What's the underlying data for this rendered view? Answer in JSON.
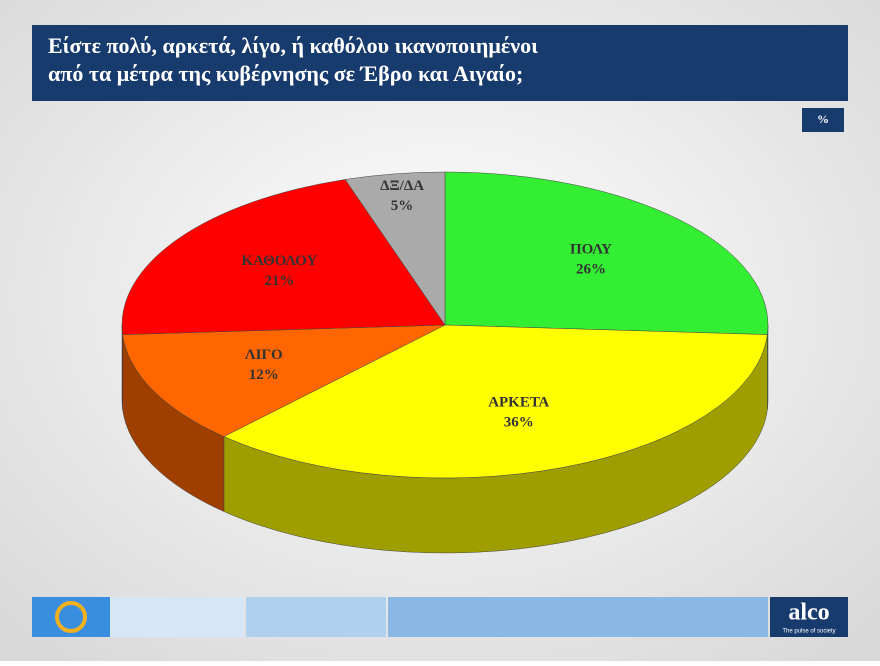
{
  "chart_data": {
    "type": "pie3d",
    "title_lines": [
      "Είστε πολύ, αρκετά, λίγο, ή καθόλου ικανοποιημένοι",
      "από τα μέτρα της κυβέρνησης σε Έβρο και Αιγαίο;"
    ],
    "unit": "%",
    "categories": [
      "ΠΟΛΥ",
      "ΑΡΚΕΤΑ",
      "ΛΙΓΟ",
      "ΚΑΘΟΛΟΥ",
      "ΔΞ/ΔΑ"
    ],
    "values": [
      26,
      36,
      12,
      21,
      5
    ],
    "value_labels": [
      "26%",
      "36%",
      "12%",
      "21%",
      "5%"
    ],
    "colors": [
      "#33ee33",
      "#ffff00",
      "#ff6600",
      "#ff0000",
      "#aaaaaa"
    ]
  },
  "footer": {
    "brand": "alco",
    "tagline": "The pulse of society"
  }
}
